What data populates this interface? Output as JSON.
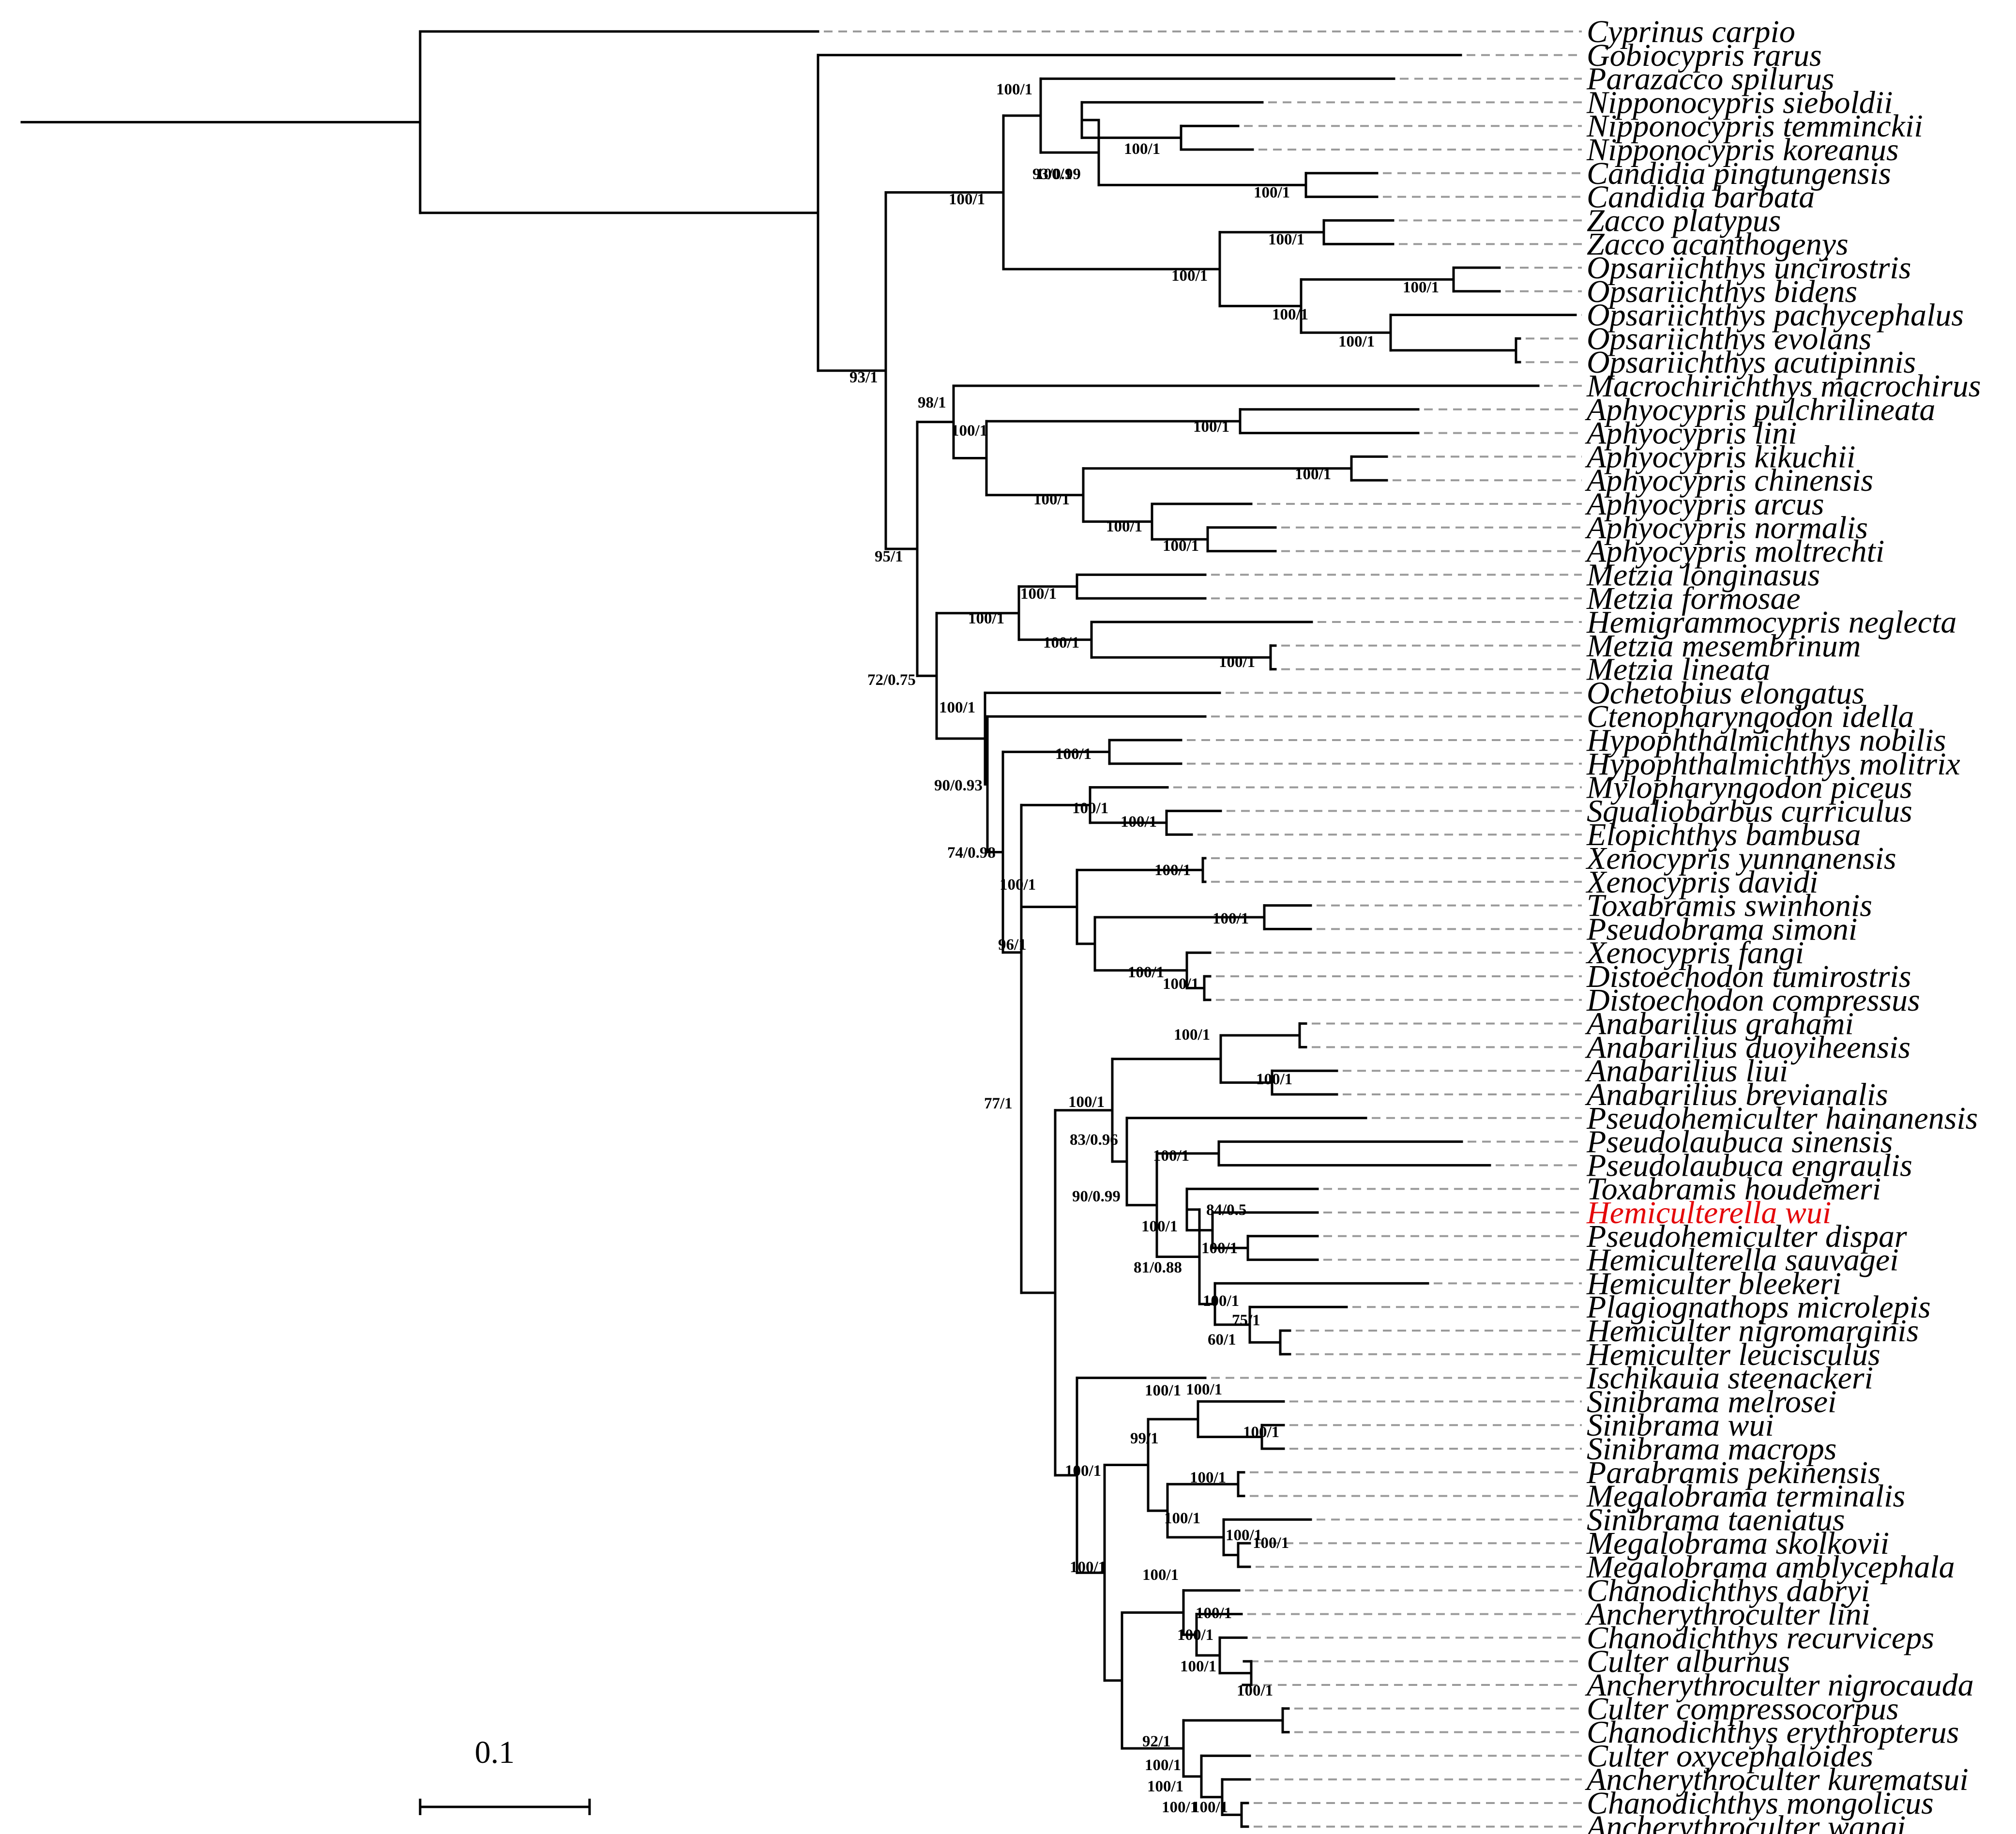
{
  "figure": {
    "type": "phylogenetic-tree",
    "highlight_color": "#e4080a"
  },
  "scale_bar": {
    "label": "0.1",
    "value": 0.1
  },
  "taxa": [
    "Cyprinus carpio",
    "Gobiocypris rarus",
    "Parazacco spilurus",
    "Nipponocypris sieboldii",
    "Nipponocypris temminckii",
    "Nipponocypris koreanus",
    "Candidia pingtungensis",
    "Candidia barbata",
    "Zacco platypus",
    "Zacco acanthogenys",
    "Opsariichthys uncirostris",
    "Opsariichthys bidens",
    "Opsariichthys pachycephalus",
    "Opsariichthys evolans",
    "Opsariichthys acutipinnis",
    "Macrochirichthys macrochirus",
    "Aphyocypris pulchrilineata",
    "Aphyocypris lini",
    "Aphyocypris kikuchii",
    "Aphyocypris chinensis",
    "Aphyocypris arcus",
    "Aphyocypris normalis",
    "Aphyocypris moltrechti",
    "Metzia longinasus",
    "Metzia formosae",
    "Hemigrammocypris neglecta",
    "Metzia mesembrinum",
    "Metzia lineata",
    "Ochetobius elongatus",
    "Ctenopharyngodon idella",
    "Hypophthalmichthys nobilis",
    "Hypophthalmichthys molitrix",
    "Mylopharyngodon piceus",
    "Squaliobarbus curriculus",
    "Elopichthys bambusa",
    "Xenocypris yunnanensis",
    "Xenocypris davidi",
    "Toxabramis swinhonis",
    "Pseudobrama simoni",
    "Xenocypris fangi",
    "Distoechodon tumirostris",
    "Distoechodon compressus",
    "Anabarilius grahami",
    "Anabarilius duoyiheensis",
    "Anabarilius liui",
    "Anabarilius brevianalis",
    "Pseudohemiculter hainanensis",
    "Pseudolaubuca sinensis",
    "Pseudolaubuca engraulis",
    "Toxabramis houdemeri",
    "Hemiculterella wui",
    "Pseudohemiculter dispar",
    "Hemiculterella sauvagei",
    "Hemiculter bleekeri",
    "Plagiognathops microlepis",
    "Hemiculter nigromarginis",
    "Hemiculter leucisculus",
    "Ischikauia steenackeri",
    "Sinibrama melrosei",
    "Sinibrama wui",
    "Sinibrama macrops",
    "Parabramis pekinensis",
    "Megalobrama terminalis",
    "Sinibrama taeniatus",
    "Megalobrama skolkovii",
    "Megalobrama amblycephala",
    "Chanodichthys dabryi",
    "Ancherythroculter lini",
    "Chanodichthys recurviceps",
    "Culter alburnus",
    "Ancherythroculter nigrocauda",
    "Culter compressocorpus",
    "Chanodichthys erythropterus",
    "Culter oxycephaloides",
    "Ancherythroculter kurematsui",
    "Chanodichthys mongolicus",
    "Ancherythroculter wangi"
  ],
  "highlighted_taxon": "Hemiculterella wui",
  "supports": [
    "100/1",
    "100/1",
    "100/1",
    "93/0.99",
    "100/1",
    "100/1",
    "100/1",
    "100/1",
    "100/1",
    "100/1",
    "100/1",
    "93/1",
    "98/1",
    "100/1",
    "100/1",
    "100/1",
    "100/1",
    "100/1",
    "100/1",
    "95/1",
    "100/1",
    "100/1",
    "100/1",
    "100/1",
    "72/0.75",
    "100/1",
    "100/1",
    "90/0.93",
    "100/1",
    "100/1",
    "74/0.98",
    "100/1",
    "100/1",
    "96/1",
    "100/1",
    "100/1",
    "77/1",
    "100/1",
    "100/1",
    "100/1",
    "100/1",
    "83/0.96",
    "100/1",
    "90/0.99",
    "84/0.5",
    "100/1",
    "100/1",
    "81/0.88",
    "100/1",
    "75/1",
    "60/1",
    "100/1",
    "100/1",
    "100/1",
    "100/1",
    "99/1",
    "100/1",
    "100/1",
    "100/1",
    "100/1",
    "100/1",
    "100/1",
    "100/1",
    "100/1",
    "100/1",
    "92/1",
    "100/1",
    "100/1",
    "100/1",
    "100/1",
    "100/1"
  ]
}
